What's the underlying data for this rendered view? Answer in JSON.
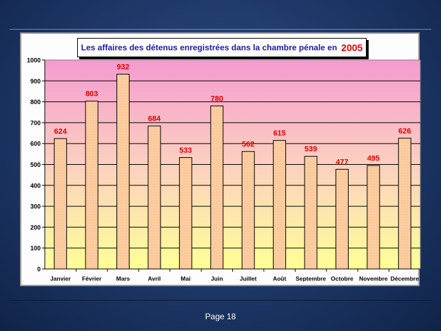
{
  "footer": {
    "page_label": "Page 18"
  },
  "chart_data": {
    "type": "bar",
    "title": "Les affaires des détenus enregistrées dans la chambre pénale en",
    "title_year": "2005",
    "categories": [
      "Janvier",
      "Février",
      "Mars",
      "Avril",
      "Mai",
      "Juin",
      "Juillet",
      "Août",
      "Septembre",
      "Octobre",
      "Novembre",
      "Décembre"
    ],
    "values": [
      624,
      803,
      932,
      684,
      533,
      780,
      562,
      615,
      539,
      477,
      495,
      626
    ],
    "ylim": [
      0,
      1000
    ],
    "yticks": [
      0,
      100,
      200,
      300,
      400,
      500,
      600,
      700,
      800,
      900,
      1000
    ],
    "grid": true,
    "legend": "none",
    "colors": {
      "bar_fill": "#fbc99a",
      "bar_stroke": "#000000",
      "data_label": "#e00000",
      "title_text": "#1a1aa8",
      "plot_top": "#f49bd0",
      "plot_bottom": "#ffff96"
    }
  }
}
